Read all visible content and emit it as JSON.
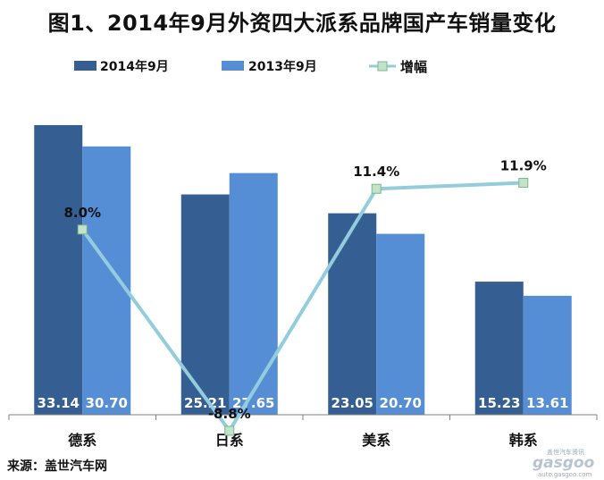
{
  "chart_data": {
    "type": "bar",
    "title": "图1、2014年9月外资四大派系品牌国产车销量变化",
    "categories": [
      "德系",
      "日系",
      "美系",
      "韩系"
    ],
    "series": [
      {
        "name": "2014年9月",
        "values": [
          33.14,
          25.21,
          23.05,
          15.23
        ],
        "color": "#355f92"
      },
      {
        "name": "2013年9月",
        "values": [
          30.7,
          27.65,
          20.7,
          13.61
        ],
        "color": "#558ed5"
      }
    ],
    "line_series": {
      "name": "增幅",
      "values": [
        8.0,
        -8.8,
        11.4,
        11.9
      ],
      "labels": [
        "8.0%",
        "-8.8%",
        "11.4%",
        "11.9%"
      ],
      "color": "#93cddd"
    },
    "bar_labels": [
      [
        "33.14",
        "25.21",
        "23.05",
        "15.23"
      ],
      [
        "30.70",
        "27.65",
        "20.70",
        "13.61"
      ]
    ],
    "ylim": [
      0,
      36
    ],
    "line_ylim": [
      -10,
      20
    ],
    "legend": "top",
    "grid": false
  },
  "footer": {
    "source": "来源：盖世汽车网"
  },
  "watermark": {
    "brand": "gasgoo",
    "domain": "auto.gasgoo.com",
    "tagline": "盖世汽车资讯"
  }
}
